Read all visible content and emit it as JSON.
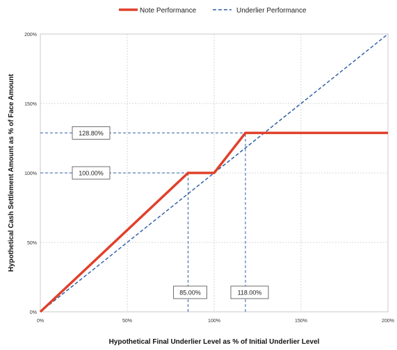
{
  "chart_data": {
    "type": "line",
    "xlabel": "Hypothetical Final Underlier Level as % of Initial Underlier Level",
    "ylabel": "Hypothetical Cash Settlement Amount as % of Face Amount",
    "xlim": [
      0,
      200
    ],
    "ylim": [
      0,
      200
    ],
    "x_ticks": [
      0,
      50,
      100,
      150,
      200
    ],
    "y_ticks": [
      0,
      50,
      100,
      150,
      200
    ],
    "x_tick_labels": [
      "0%",
      "50%",
      "100%",
      "150%",
      "200%"
    ],
    "y_tick_labels": [
      "0%",
      "50%",
      "100%",
      "150%",
      "200%"
    ],
    "grid": true,
    "legend_position": "top-center",
    "series": [
      {
        "name": "Note Performance",
        "style": "solid",
        "color": "#e0402b",
        "points": [
          [
            0,
            0
          ],
          [
            85,
            100
          ],
          [
            100,
            100
          ],
          [
            118,
            128.8
          ],
          [
            200,
            128.8
          ]
        ]
      },
      {
        "name": "Underlier Performance",
        "style": "dashed",
        "color": "#2e5fa8",
        "points": [
          [
            0,
            0
          ],
          [
            200,
            200
          ]
        ]
      }
    ],
    "reference_lines": [
      {
        "orientation": "horizontal",
        "y": 100,
        "x_from": 0,
        "x_to": 85
      },
      {
        "orientation": "horizontal",
        "y": 128.8,
        "x_from": 0,
        "x_to": 118
      },
      {
        "orientation": "vertical",
        "x": 85,
        "y_from": 0,
        "y_to": 100
      },
      {
        "orientation": "vertical",
        "x": 118,
        "y_from": 0,
        "y_to": 128.8
      }
    ],
    "annotations": [
      {
        "text": "128.80%",
        "x": 12,
        "y": 128.8
      },
      {
        "text": "100.00%",
        "x": 12,
        "y": 100
      },
      {
        "text": "85.00%",
        "x": 85,
        "y": 14
      },
      {
        "text": "118.00%",
        "x": 118,
        "y": 14
      }
    ]
  }
}
